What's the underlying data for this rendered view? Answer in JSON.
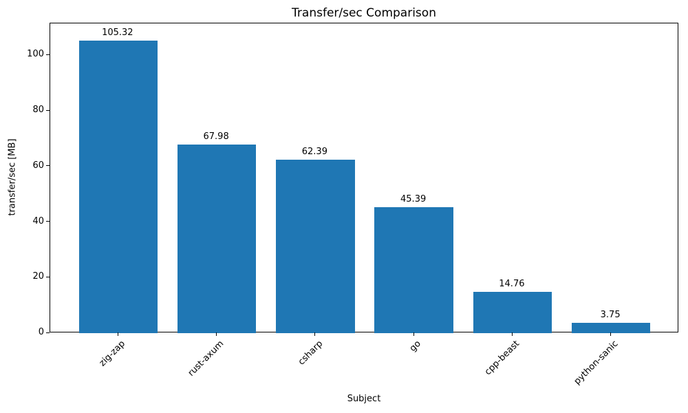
{
  "chart_data": {
    "type": "bar",
    "title": "Transfer/sec Comparison",
    "xlabel": "Subject",
    "ylabel": "transfer/sec [MB]",
    "categories": [
      "zig-zap",
      "rust-axum",
      "csharp",
      "go",
      "cpp-beast",
      "python-sanic"
    ],
    "values": [
      105.32,
      67.98,
      62.39,
      45.39,
      14.76,
      3.75
    ],
    "value_labels": [
      "105.32",
      "67.98",
      "62.39",
      "45.39",
      "14.76",
      "3.75"
    ],
    "yticks": [
      0,
      20,
      40,
      60,
      80,
      100
    ],
    "ylim": [
      0,
      111.5
    ],
    "xlim": [
      -0.69,
      5.69
    ],
    "bar_width": 0.8,
    "bar_color": "#1f77b4",
    "text_color": "#000000",
    "grid": false,
    "legend": "none",
    "xtick_rotation_deg": 45
  }
}
